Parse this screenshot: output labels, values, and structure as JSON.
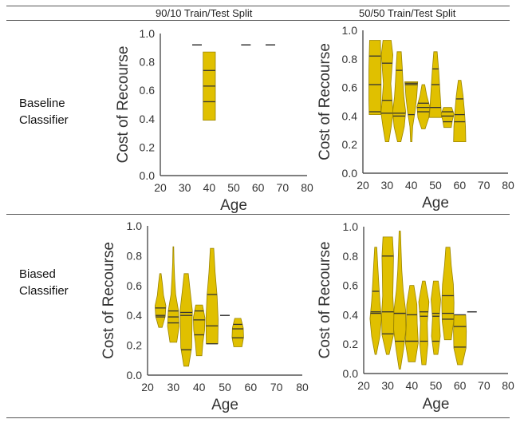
{
  "columns": [
    "90/10 Train/Test Split",
    "50/50 Train/Test Split"
  ],
  "rows": [
    {
      "label_line1": "Baseline",
      "label_line2": "Classifier"
    },
    {
      "label_line1": "Biased",
      "label_line2": "Classifier"
    }
  ],
  "colors": {
    "violin_fill": "#e0c000",
    "violin_edge": "#9a8400",
    "quartile_line": "#333333",
    "axis": "#333333"
  },
  "chart_data": [
    {
      "type": "violin",
      "panel": "baseline-90-10",
      "xlabel": "Age",
      "ylabel": "Cost of Recourse",
      "xlim": [
        20,
        80
      ],
      "ylim": [
        0.0,
        1.0
      ],
      "xticks": [
        "20",
        "30",
        "40",
        "50",
        "60",
        "70",
        "80"
      ],
      "yticks": [
        "0.0",
        "0.2",
        "0.4",
        "0.6",
        "0.8",
        "1.0"
      ],
      "violins": [
        {
          "x": 35,
          "min": 0.92,
          "max": 0.92,
          "q1": 0.92,
          "median": 0.92,
          "q3": 0.92,
          "shape": [
            0.5,
            0.5
          ]
        },
        {
          "x": 40,
          "min": 0.39,
          "max": 0.87,
          "q1": 0.52,
          "median": 0.63,
          "q3": 0.74,
          "shape": [
            0.9,
            0.9,
            0.9,
            0.9,
            0.9
          ]
        },
        {
          "x": 55,
          "min": 0.92,
          "max": 0.92,
          "q1": 0.92,
          "median": 0.92,
          "q3": 0.92,
          "shape": [
            0.5,
            0.5
          ]
        },
        {
          "x": 65,
          "min": 0.92,
          "max": 0.92,
          "q1": 0.92,
          "median": 0.92,
          "q3": 0.92,
          "shape": [
            0.5,
            0.5
          ]
        }
      ]
    },
    {
      "type": "violin",
      "panel": "baseline-50-50",
      "xlabel": "Age",
      "ylabel": "Cost of Recourse",
      "xlim": [
        20,
        80
      ],
      "ylim": [
        0.0,
        1.0
      ],
      "xticks": [
        "20",
        "30",
        "40",
        "50",
        "60",
        "70",
        "80"
      ],
      "yticks": [
        "0.0",
        "0.2",
        "0.4",
        "0.6",
        "0.8",
        "1.0"
      ],
      "violins": [
        {
          "x": 25,
          "min": 0.41,
          "max": 0.93,
          "q1": 0.43,
          "median": 0.62,
          "q3": 0.82,
          "shape": [
            0.85,
            0.9,
            0.9,
            0.9,
            0.85,
            0.8
          ]
        },
        {
          "x": 30,
          "min": 0.22,
          "max": 0.93,
          "q1": 0.42,
          "median": 0.51,
          "q3": 0.77,
          "shape": [
            0.25,
            0.6,
            0.9,
            0.7,
            0.55,
            0.7,
            0.85,
            0.6
          ]
        },
        {
          "x": 35,
          "min": 0.22,
          "max": 0.85,
          "q1": 0.4,
          "median": 0.42,
          "q3": 0.72,
          "shape": [
            0.25,
            0.75,
            0.95,
            0.7,
            0.55,
            0.45,
            0.3
          ]
        },
        {
          "x": 40,
          "min": 0.22,
          "max": 0.64,
          "q1": 0.41,
          "median": 0.62,
          "q3": 0.63,
          "shape": [
            0.1,
            0.2,
            0.55,
            0.8,
            0.95
          ]
        },
        {
          "x": 45,
          "min": 0.31,
          "max": 0.62,
          "q1": 0.43,
          "median": 0.46,
          "q3": 0.49,
          "shape": [
            0.25,
            0.8,
            0.95,
            0.5,
            0.2
          ]
        },
        {
          "x": 50,
          "min": 0.39,
          "max": 0.85,
          "q1": 0.46,
          "median": 0.62,
          "q3": 0.73,
          "shape": [
            0.9,
            0.75,
            0.6,
            0.45,
            0.25
          ]
        },
        {
          "x": 55,
          "min": 0.32,
          "max": 0.46,
          "q1": 0.36,
          "median": 0.4,
          "q3": 0.43,
          "shape": [
            0.55,
            0.7,
            0.95,
            0.6
          ]
        },
        {
          "x": 60,
          "min": 0.22,
          "max": 0.65,
          "q1": 0.36,
          "median": 0.41,
          "q3": 0.52,
          "shape": [
            0.9,
            0.85,
            0.7,
            0.5,
            0.2
          ]
        }
      ]
    },
    {
      "type": "violin",
      "panel": "biased-90-10",
      "xlabel": "Age",
      "ylabel": "Cost of Recourse",
      "xlim": [
        20,
        80
      ],
      "ylim": [
        0.0,
        1.0
      ],
      "xticks": [
        "20",
        "30",
        "40",
        "50",
        "60",
        "70",
        "80"
      ],
      "yticks": [
        "0.0",
        "0.2",
        "0.4",
        "0.6",
        "0.8",
        "1.0"
      ],
      "violins": [
        {
          "x": 25,
          "min": 0.32,
          "max": 0.68,
          "q1": 0.39,
          "median": 0.4,
          "q3": 0.45,
          "shape": [
            0.25,
            0.7,
            0.8,
            0.45,
            0.3,
            0.1
          ]
        },
        {
          "x": 30,
          "min": 0.22,
          "max": 0.86,
          "q1": 0.35,
          "median": 0.39,
          "q3": 0.43,
          "shape": [
            0.5,
            0.85,
            0.75,
            0.35,
            0.2,
            0.1,
            0.05
          ]
        },
        {
          "x": 35,
          "min": 0.06,
          "max": 0.68,
          "q1": 0.17,
          "median": 0.4,
          "q3": 0.42,
          "shape": [
            0.35,
            0.8,
            0.85,
            0.9,
            0.6,
            0.3
          ]
        },
        {
          "x": 40,
          "min": 0.13,
          "max": 0.47,
          "q1": 0.27,
          "median": 0.37,
          "q3": 0.43,
          "shape": [
            0.4,
            0.55,
            0.8,
            0.85,
            0.5
          ]
        },
        {
          "x": 45,
          "min": 0.21,
          "max": 0.85,
          "q1": 0.21,
          "median": 0.33,
          "q3": 0.54,
          "shape": [
            0.85,
            0.9,
            0.75,
            0.45,
            0.25
          ]
        },
        {
          "x": 50,
          "min": 0.4,
          "max": 0.4,
          "q1": 0.4,
          "median": 0.4,
          "q3": 0.4,
          "shape": [
            0.5,
            0.5
          ]
        },
        {
          "x": 55,
          "min": 0.19,
          "max": 0.38,
          "q1": 0.25,
          "median": 0.31,
          "q3": 0.34,
          "shape": [
            0.6,
            0.85,
            0.8,
            0.45
          ]
        }
      ]
    },
    {
      "type": "violin",
      "panel": "biased-50-50",
      "xlabel": "Age",
      "ylabel": "Cost of Recourse",
      "xlim": [
        20,
        80
      ],
      "ylim": [
        0.0,
        1.0
      ],
      "xticks": [
        "20",
        "30",
        "40",
        "50",
        "60",
        "70",
        "80"
      ],
      "yticks": [
        "0.0",
        "0.2",
        "0.4",
        "0.6",
        "0.8",
        "1.0"
      ],
      "violins": [
        {
          "x": 25,
          "min": 0.13,
          "max": 0.86,
          "q1": 0.41,
          "median": 0.42,
          "q3": 0.56,
          "shape": [
            0.1,
            0.6,
            0.85,
            0.6,
            0.45,
            0.3,
            0.15
          ]
        },
        {
          "x": 30,
          "min": 0.13,
          "max": 0.93,
          "q1": 0.27,
          "median": 0.42,
          "q3": 0.8,
          "shape": [
            0.2,
            0.85,
            0.9,
            0.75,
            0.8,
            0.85,
            0.7
          ]
        },
        {
          "x": 35,
          "min": 0.03,
          "max": 0.97,
          "q1": 0.22,
          "median": 0.41,
          "q3": 0.41,
          "shape": [
            0.1,
            0.55,
            0.9,
            0.85,
            0.5,
            0.3,
            0.2,
            0.1
          ]
        },
        {
          "x": 40,
          "min": 0.08,
          "max": 0.6,
          "q1": 0.22,
          "median": 0.22,
          "q3": 0.4,
          "shape": [
            0.5,
            0.95,
            0.8,
            0.75,
            0.3
          ]
        },
        {
          "x": 45,
          "min": 0.06,
          "max": 0.63,
          "q1": 0.22,
          "median": 0.39,
          "q3": 0.42,
          "shape": [
            0.3,
            0.6,
            0.5,
            0.75,
            0.2
          ]
        },
        {
          "x": 50,
          "min": 0.13,
          "max": 0.63,
          "q1": 0.22,
          "median": 0.39,
          "q3": 0.41,
          "shape": [
            0.3,
            0.65,
            0.5,
            0.7,
            0.35
          ]
        },
        {
          "x": 55,
          "min": 0.23,
          "max": 0.86,
          "q1": 0.37,
          "median": 0.41,
          "q3": 0.53,
          "shape": [
            0.5,
            0.85,
            0.9,
            0.8,
            0.5,
            0.3
          ]
        },
        {
          "x": 60,
          "min": 0.06,
          "max": 0.4,
          "q1": 0.18,
          "median": 0.32,
          "q3": 0.4,
          "shape": [
            0.35,
            0.9,
            0.95,
            0.85
          ]
        },
        {
          "x": 65,
          "min": 0.42,
          "max": 0.42,
          "q1": 0.42,
          "median": 0.42,
          "q3": 0.42,
          "shape": [
            0.5,
            0.5
          ]
        }
      ]
    }
  ]
}
